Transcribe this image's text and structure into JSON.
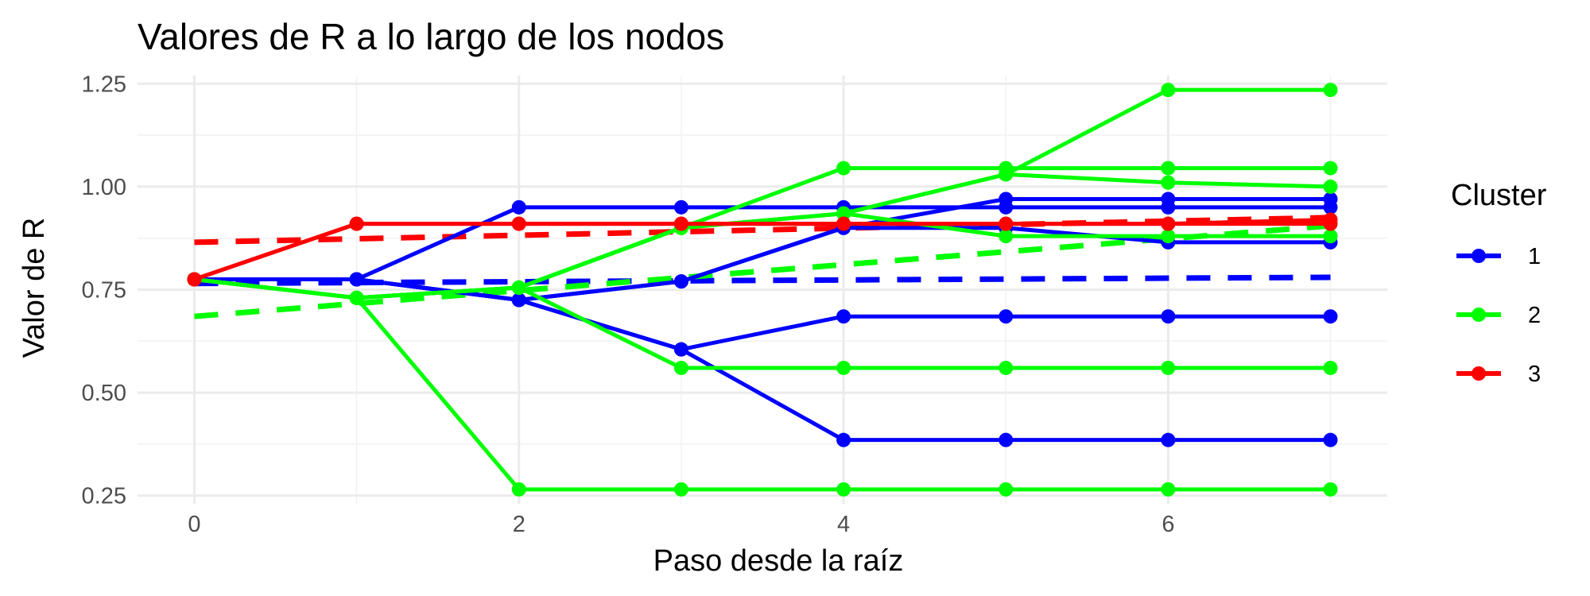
{
  "chart_data": {
    "type": "line",
    "title": "Valores de R a lo largo de los nodos",
    "xlabel": "Paso desde la raíz",
    "ylabel": "Valor de R",
    "xlim": [
      -0.35,
      7.35
    ],
    "ylim": [
      0.23,
      1.27
    ],
    "x_ticks": [
      0,
      2,
      4,
      6
    ],
    "x_tick_labels": [
      "0",
      "2",
      "4",
      "6"
    ],
    "y_ticks": [
      0.25,
      0.5,
      0.75,
      1.0,
      1.25
    ],
    "y_tick_labels": [
      "0.25",
      "0.50",
      "0.75",
      "1.00",
      "1.25"
    ],
    "grid": true,
    "legend": {
      "title": "Cluster",
      "placement": "right",
      "entries": [
        {
          "label": "1",
          "color": "#0000ff"
        },
        {
          "label": "2",
          "color": "#00ff00"
        },
        {
          "label": "3",
          "color": "#ff0000"
        }
      ]
    },
    "series": [
      {
        "cluster": "1",
        "color": "#0000ff",
        "x": [
          0,
          1,
          2,
          3,
          4,
          5,
          6,
          7
        ],
        "y": [
          0.775,
          0.775,
          0.95,
          0.95,
          0.95,
          0.95,
          0.95,
          0.95
        ]
      },
      {
        "cluster": "1",
        "color": "#0000ff",
        "x": [
          0,
          1,
          2,
          3,
          4,
          5,
          6,
          7
        ],
        "y": [
          0.775,
          0.775,
          0.725,
          0.77,
          0.9,
          0.97,
          0.97,
          0.97
        ]
      },
      {
        "cluster": "1",
        "color": "#0000ff",
        "x": [
          0,
          1,
          2,
          3,
          4,
          5,
          6,
          7
        ],
        "y": [
          0.775,
          0.775,
          0.725,
          0.77,
          0.9,
          0.9,
          0.865,
          0.865
        ]
      },
      {
        "cluster": "1",
        "color": "#0000ff",
        "x": [
          0,
          1,
          2,
          3,
          4,
          5,
          6,
          7
        ],
        "y": [
          0.775,
          0.775,
          0.725,
          0.605,
          0.685,
          0.685,
          0.685,
          0.685
        ]
      },
      {
        "cluster": "1",
        "color": "#0000ff",
        "x": [
          0,
          1,
          2,
          3,
          4,
          5,
          6,
          7
        ],
        "y": [
          0.775,
          0.775,
          0.725,
          0.605,
          0.385,
          0.385,
          0.385,
          0.385
        ]
      },
      {
        "cluster": "2",
        "color": "#00ff00",
        "x": [
          0,
          1,
          2,
          3,
          4,
          5,
          6,
          7
        ],
        "y": [
          0.775,
          0.73,
          0.755,
          0.9,
          1.045,
          1.045,
          1.045,
          1.045
        ]
      },
      {
        "cluster": "2",
        "color": "#00ff00",
        "x": [
          0,
          1,
          2,
          3,
          4,
          5,
          6,
          7
        ],
        "y": [
          0.775,
          0.73,
          0.755,
          0.9,
          0.935,
          1.03,
          1.235,
          1.235
        ]
      },
      {
        "cluster": "2",
        "color": "#00ff00",
        "x": [
          0,
          1,
          2,
          3,
          4,
          5,
          6,
          7
        ],
        "y": [
          0.775,
          0.73,
          0.755,
          0.9,
          0.935,
          1.03,
          1.01,
          1.0
        ]
      },
      {
        "cluster": "2",
        "color": "#00ff00",
        "x": [
          0,
          1,
          2,
          3,
          4,
          5,
          6,
          7
        ],
        "y": [
          0.775,
          0.73,
          0.755,
          0.9,
          0.935,
          0.88,
          0.88,
          0.88
        ]
      },
      {
        "cluster": "2",
        "color": "#00ff00",
        "x": [
          0,
          1,
          2,
          3,
          4,
          5,
          6,
          7
        ],
        "y": [
          0.775,
          0.73,
          0.755,
          0.56,
          0.56,
          0.56,
          0.56,
          0.56
        ]
      },
      {
        "cluster": "2",
        "color": "#00ff00",
        "x": [
          0,
          1,
          2,
          3,
          4,
          5,
          6,
          7
        ],
        "y": [
          0.775,
          0.73,
          0.265,
          0.265,
          0.265,
          0.265,
          0.265,
          0.265
        ]
      },
      {
        "cluster": "3",
        "color": "#ff0000",
        "x": [
          0,
          1,
          2,
          3,
          4,
          5,
          6,
          7
        ],
        "y": [
          0.775,
          0.91,
          0.91,
          0.91,
          0.91,
          0.91,
          0.91,
          0.91
        ]
      },
      {
        "cluster": "3",
        "color": "#ff0000",
        "x": [
          0,
          1,
          2,
          3,
          4,
          5,
          6,
          7
        ],
        "y": [
          0.775,
          0.91,
          0.91,
          0.91,
          0.91,
          0.91,
          0.91,
          0.92
        ]
      }
    ],
    "trend_lines": [
      {
        "cluster": "1",
        "color": "#0000ff",
        "style": "dashed",
        "x": [
          0,
          7
        ],
        "y": [
          0.765,
          0.78
        ]
      },
      {
        "cluster": "2",
        "color": "#00ff00",
        "style": "dashed",
        "x": [
          0,
          7
        ],
        "y": [
          0.685,
          0.905
        ]
      },
      {
        "cluster": "3",
        "color": "#ff0000",
        "style": "dashed",
        "x": [
          0,
          7
        ],
        "y": [
          0.865,
          0.925
        ]
      }
    ]
  }
}
